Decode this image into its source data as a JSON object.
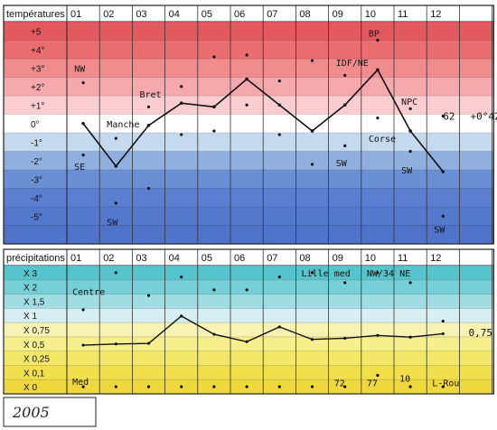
{
  "chart_data": [
    {
      "type": "line",
      "header": "températures",
      "categories": [
        "01",
        "02",
        "03",
        "04",
        "05",
        "06",
        "07",
        "08",
        "09",
        "10",
        "11",
        "12"
      ],
      "row_labels": [
        "+5",
        "+4°",
        "+3°",
        "+2°",
        "+1°",
        "0°",
        "-1°",
        "-2°",
        "-3°",
        "-4°",
        "-5°"
      ],
      "y_range": [
        -6,
        6
      ],
      "values": [
        0,
        -2.3,
        -0.1,
        1.1,
        0.9,
        2.4,
        1.0,
        -0.4,
        1.0,
        2.9,
        -0.4,
        -2.6
      ],
      "band_colors": [
        "#e35a5e",
        "#ea6d70",
        "#f08c8e",
        "#f6a9ad",
        "#fbcdd1",
        "#ffffff",
        "#c4d8ee",
        "#8fb0df",
        "#6b8fd5",
        "#5b7ed0",
        "#5478cc",
        "#4f73c8"
      ],
      "dots": [
        {
          "x": 1,
          "y": 2.2
        },
        {
          "x": 1,
          "y": -1.7
        },
        {
          "x": 2,
          "y": -0.8
        },
        {
          "x": 2,
          "y": -4.3
        },
        {
          "x": 3,
          "y": 0.9
        },
        {
          "x": 3,
          "y": -3.5
        },
        {
          "x": 4,
          "y": 2.0
        },
        {
          "x": 4,
          "y": -0.6
        },
        {
          "x": 5,
          "y": 3.6
        },
        {
          "x": 5,
          "y": -0.4
        },
        {
          "x": 6,
          "y": 3.7
        },
        {
          "x": 6,
          "y": 1.0
        },
        {
          "x": 7,
          "y": 2.3
        },
        {
          "x": 7,
          "y": -0.6
        },
        {
          "x": 8,
          "y": 3.4
        },
        {
          "x": 8,
          "y": -2.2
        },
        {
          "x": 9,
          "y": 2.6
        },
        {
          "x": 9,
          "y": -1.2
        },
        {
          "x": 10,
          "y": 4.5
        },
        {
          "x": 10,
          "y": 0.3
        },
        {
          "x": 11,
          "y": 0.8
        },
        {
          "x": 11,
          "y": -1.5
        },
        {
          "x": 12,
          "y": 0.4
        },
        {
          "x": 12,
          "y": -5.0
        }
      ],
      "annotations": [
        {
          "text": "NW",
          "x": 1,
          "y": 3.0
        },
        {
          "text": "SE",
          "x": 1,
          "y": -2.3
        },
        {
          "text": "Manche",
          "x": 2,
          "y": 0.0
        },
        {
          "text": "SW",
          "x": 2,
          "y": -5.3
        },
        {
          "text": "Bret",
          "x": 3,
          "y": 1.6
        },
        {
          "text": "IDF/NE",
          "x": 9,
          "y": 3.3
        },
        {
          "text": "SW",
          "x": 9,
          "y": -2.1
        },
        {
          "text": "BP",
          "x": 10,
          "y": 4.9
        },
        {
          "text": "Corse",
          "x": 10,
          "y": -0.8
        },
        {
          "text": "NPC",
          "x": 11,
          "y": 1.2
        },
        {
          "text": "SW",
          "x": 11,
          "y": -2.5
        },
        {
          "text": "SW",
          "x": 12,
          "y": -5.7
        }
      ],
      "side_values": [
        {
          "text": "62",
          "col": 12
        },
        {
          "text": "+0°42",
          "col": 13
        }
      ]
    },
    {
      "type": "line",
      "header": "précipitations",
      "categories": [
        "01",
        "02",
        "03",
        "04",
        "05",
        "06",
        "07",
        "08",
        "09",
        "10",
        "11",
        "12"
      ],
      "row_labels": [
        "X 3",
        "X 2",
        "X 1,5",
        "X 1",
        "X 0,75",
        "X 0,5",
        "X 0,25",
        "X 0,1",
        "X 0"
      ],
      "values": [
        0.48,
        0.5,
        0.51,
        0.99,
        0.67,
        0.54,
        0.8,
        0.58,
        0.6,
        0.65,
        0.62,
        0.68
      ],
      "band_colors": [
        "#56c4cc",
        "#74cfd6",
        "#9fdde3",
        "#d7eef3",
        "#f8f3b3",
        "#f6ef8c",
        "#f3e768",
        "#f1df4b",
        "#efd83b"
      ],
      "dots": [
        {
          "x": 1,
          "y": 1.2
        },
        {
          "x": 1,
          "y": 0.0
        },
        {
          "x": 2,
          "y": 3.2
        },
        {
          "x": 2,
          "y": 0.0
        },
        {
          "x": 3,
          "y": 1.7
        },
        {
          "x": 3,
          "y": 0.0
        },
        {
          "x": 4,
          "y": 2.7
        },
        {
          "x": 4,
          "y": 0.0
        },
        {
          "x": 5,
          "y": 1.9
        },
        {
          "x": 5,
          "y": 0.0
        },
        {
          "x": 6,
          "y": 1.9
        },
        {
          "x": 6,
          "y": 0.0
        },
        {
          "x": 7,
          "y": 2.7
        },
        {
          "x": 7,
          "y": 0.0
        },
        {
          "x": 8,
          "y": 3.2
        },
        {
          "x": 8,
          "y": 0.0
        },
        {
          "x": 9,
          "y": 2.3
        },
        {
          "x": 9,
          "y": 0.0
        },
        {
          "x": 10,
          "y": 3.1
        },
        {
          "x": 10,
          "y": 0.08
        },
        {
          "x": 11,
          "y": 2.3
        },
        {
          "x": 11,
          "y": 0.0
        },
        {
          "x": 12,
          "y": 0.9
        },
        {
          "x": 12,
          "y": 0.0
        }
      ],
      "annotations": [
        {
          "text": "Centre",
          "x": 1,
          "y": 1.85
        },
        {
          "text": "Med",
          "x": 1,
          "y": 0.04
        },
        {
          "text": "Lille",
          "x": 8,
          "y": 3.1
        },
        {
          "text": "med",
          "x": 9,
          "y": 3.0
        },
        {
          "text": "NW/34",
          "x": 10,
          "y": 3.0
        },
        {
          "text": "NE",
          "x": 11,
          "y": 3.0
        },
        {
          "text": "72",
          "x": 9,
          "y": 0.03
        },
        {
          "text": "77",
          "x": 10,
          "y": 0.03
        },
        {
          "text": "10",
          "x": 11,
          "y": 0.06
        },
        {
          "text": "L-Rou",
          "x": 12,
          "y": 0.03
        }
      ],
      "side_values": [
        {
          "text": "0,75",
          "col": 13
        }
      ]
    }
  ],
  "footer": {
    "year": "2005"
  }
}
